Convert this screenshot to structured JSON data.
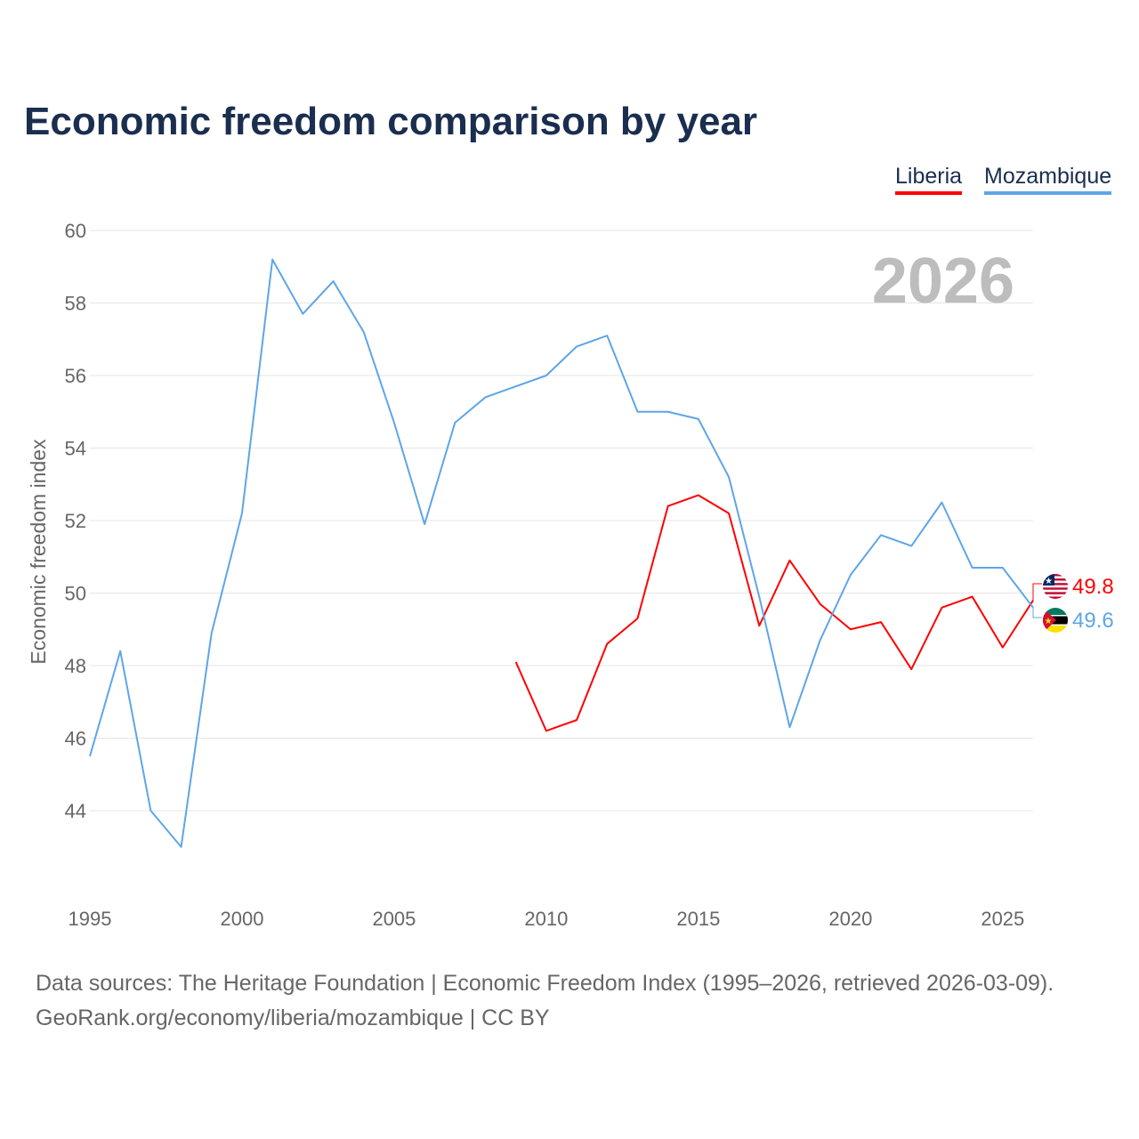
{
  "title": "Economic freedom comparison by year",
  "footer": {
    "line1": "Data sources: The Heritage Foundation | Economic Freedom Index (1995–2026, retrieved 2026-03-09).",
    "line2": "GeoRank.org/economy/liberia/mozambique | CC BY"
  },
  "chart_data": {
    "type": "line",
    "title": "Economic freedom comparison by year",
    "xlabel": "",
    "ylabel": "Economic freedom index",
    "year_watermark": "2026",
    "xlim": [
      1995,
      2026
    ],
    "ylim": [
      42,
      60
    ],
    "xticks": [
      1995,
      2000,
      2005,
      2010,
      2015,
      2020,
      2025
    ],
    "yticks": [
      44,
      46,
      48,
      50,
      52,
      54,
      56,
      58,
      60
    ],
    "grid": true,
    "legend_position": "top-right",
    "series": [
      {
        "name": "Liberia",
        "color": "#ff0000",
        "end_label": "49.8",
        "flag": "liberia-flag",
        "x": [
          2009,
          2010,
          2011,
          2012,
          2013,
          2014,
          2015,
          2016,
          2017,
          2018,
          2019,
          2020,
          2021,
          2022,
          2023,
          2024,
          2025,
          2026
        ],
        "values": [
          48.1,
          46.2,
          46.5,
          48.6,
          49.3,
          52.4,
          52.7,
          52.2,
          49.1,
          50.9,
          49.7,
          49.0,
          49.2,
          47.9,
          49.6,
          49.9,
          48.5,
          49.8
        ]
      },
      {
        "name": "Mozambique",
        "color": "#5ea5e8",
        "end_label": "49.6",
        "flag": "mozambique-flag",
        "x": [
          1995,
          1996,
          1997,
          1998,
          1999,
          2000,
          2001,
          2002,
          2003,
          2004,
          2005,
          2006,
          2007,
          2008,
          2009,
          2010,
          2011,
          2012,
          2013,
          2014,
          2015,
          2016,
          2017,
          2018,
          2019,
          2020,
          2021,
          2022,
          2023,
          2024,
          2025,
          2026
        ],
        "values": [
          45.5,
          48.4,
          44.0,
          43.0,
          48.9,
          52.2,
          59.2,
          57.7,
          58.6,
          57.2,
          54.7,
          51.9,
          54.7,
          55.4,
          55.7,
          56.0,
          56.8,
          57.1,
          55.0,
          55.0,
          54.8,
          53.2,
          49.9,
          46.3,
          48.7,
          50.5,
          51.6,
          51.3,
          52.5,
          50.7,
          50.7,
          49.6
        ]
      }
    ]
  }
}
